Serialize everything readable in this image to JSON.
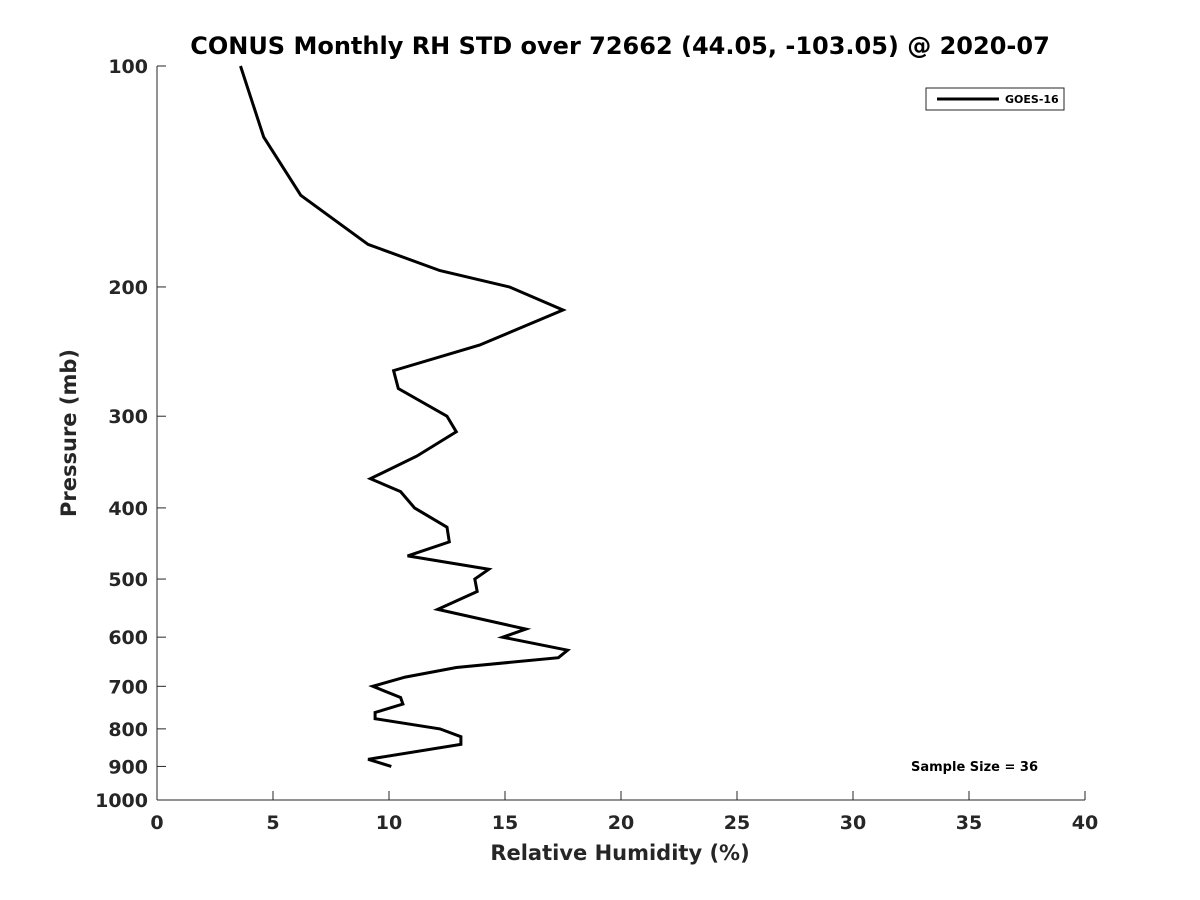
{
  "chart_data": {
    "type": "line",
    "title": "CONUS Monthly RH STD over 72662 (44.05, -103.05) @ 2020-07",
    "xlabel": "Relative Humidity (%)",
    "ylabel": "Pressure (mb)",
    "xlim": [
      0,
      40
    ],
    "ylim": [
      100,
      1000
    ],
    "yscale": "log",
    "y_reversed": true,
    "xticks": [
      0,
      5,
      10,
      15,
      20,
      25,
      30,
      35,
      40
    ],
    "yticks": [
      100,
      200,
      300,
      400,
      500,
      600,
      700,
      800,
      900,
      1000
    ],
    "grid": false,
    "legend": {
      "position": "top-right",
      "entries": [
        "GOES-16"
      ]
    },
    "annotation": "Sample Size = 36",
    "series": [
      {
        "name": "GOES-16",
        "color": "#000000",
        "points": [
          {
            "x": 3.6,
            "p": 100
          },
          {
            "x": 4.6,
            "p": 125
          },
          {
            "x": 6.2,
            "p": 150
          },
          {
            "x": 9.1,
            "p": 175
          },
          {
            "x": 12.2,
            "p": 190
          },
          {
            "x": 15.2,
            "p": 200
          },
          {
            "x": 17.5,
            "p": 215
          },
          {
            "x": 13.9,
            "p": 240
          },
          {
            "x": 10.2,
            "p": 260
          },
          {
            "x": 10.4,
            "p": 275
          },
          {
            "x": 12.5,
            "p": 300
          },
          {
            "x": 12.9,
            "p": 315
          },
          {
            "x": 11.2,
            "p": 340
          },
          {
            "x": 9.2,
            "p": 365
          },
          {
            "x": 10.5,
            "p": 380
          },
          {
            "x": 11.1,
            "p": 400
          },
          {
            "x": 12.5,
            "p": 425
          },
          {
            "x": 12.6,
            "p": 445
          },
          {
            "x": 10.8,
            "p": 465
          },
          {
            "x": 14.3,
            "p": 485
          },
          {
            "x": 13.7,
            "p": 500
          },
          {
            "x": 13.8,
            "p": 520
          },
          {
            "x": 12.1,
            "p": 550
          },
          {
            "x": 15.9,
            "p": 585
          },
          {
            "x": 14.9,
            "p": 600
          },
          {
            "x": 17.7,
            "p": 625
          },
          {
            "x": 17.3,
            "p": 640
          },
          {
            "x": 12.9,
            "p": 660
          },
          {
            "x": 10.7,
            "p": 680
          },
          {
            "x": 9.3,
            "p": 700
          },
          {
            "x": 10.5,
            "p": 725
          },
          {
            "x": 10.6,
            "p": 740
          },
          {
            "x": 9.4,
            "p": 760
          },
          {
            "x": 9.4,
            "p": 775
          },
          {
            "x": 12.2,
            "p": 800
          },
          {
            "x": 13.1,
            "p": 820
          },
          {
            "x": 13.1,
            "p": 840
          },
          {
            "x": 9.1,
            "p": 880
          },
          {
            "x": 10.1,
            "p": 900
          }
        ]
      }
    ]
  }
}
